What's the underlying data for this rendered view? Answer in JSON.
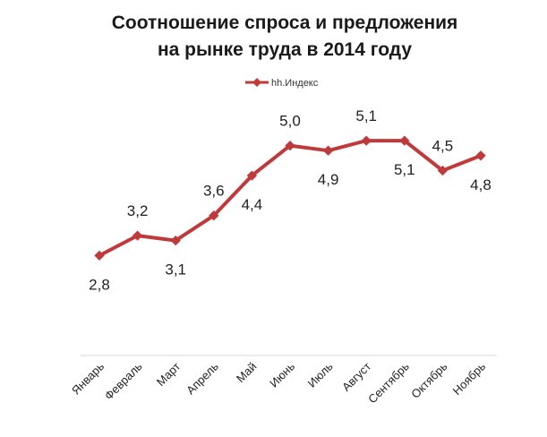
{
  "chart_data": {
    "type": "line",
    "title_lines": [
      "Соотношение спроса и предложения",
      "на рынке труда в 2014 году"
    ],
    "categories": [
      "Январь",
      "Февраль",
      "Март",
      "Апрель",
      "Май",
      "Июнь",
      "Июль",
      "Август",
      "Сентябрь",
      "Октябрь",
      "Ноябрь"
    ],
    "series": [
      {
        "name": "hh.Индекс",
        "color": "#c0393b",
        "values": [
          2.8,
          3.2,
          3.1,
          3.6,
          4.4,
          5.0,
          4.9,
          5.1,
          5.1,
          4.5,
          4.8
        ],
        "labels": [
          "2,8",
          "3,2",
          "3,1",
          "3,6",
          "4,4",
          "5,0",
          "4,9",
          "5,1",
          "5,1",
          "4,5",
          "4,8"
        ],
        "label_positions": [
          "below",
          "above",
          "below",
          "above",
          "below",
          "above",
          "below",
          "above",
          "below",
          "above",
          "below"
        ]
      }
    ],
    "legend_position": "top-center",
    "axis_color": "#d9d9d9",
    "grid": false,
    "ylim": [
      2.0,
      5.8
    ]
  }
}
